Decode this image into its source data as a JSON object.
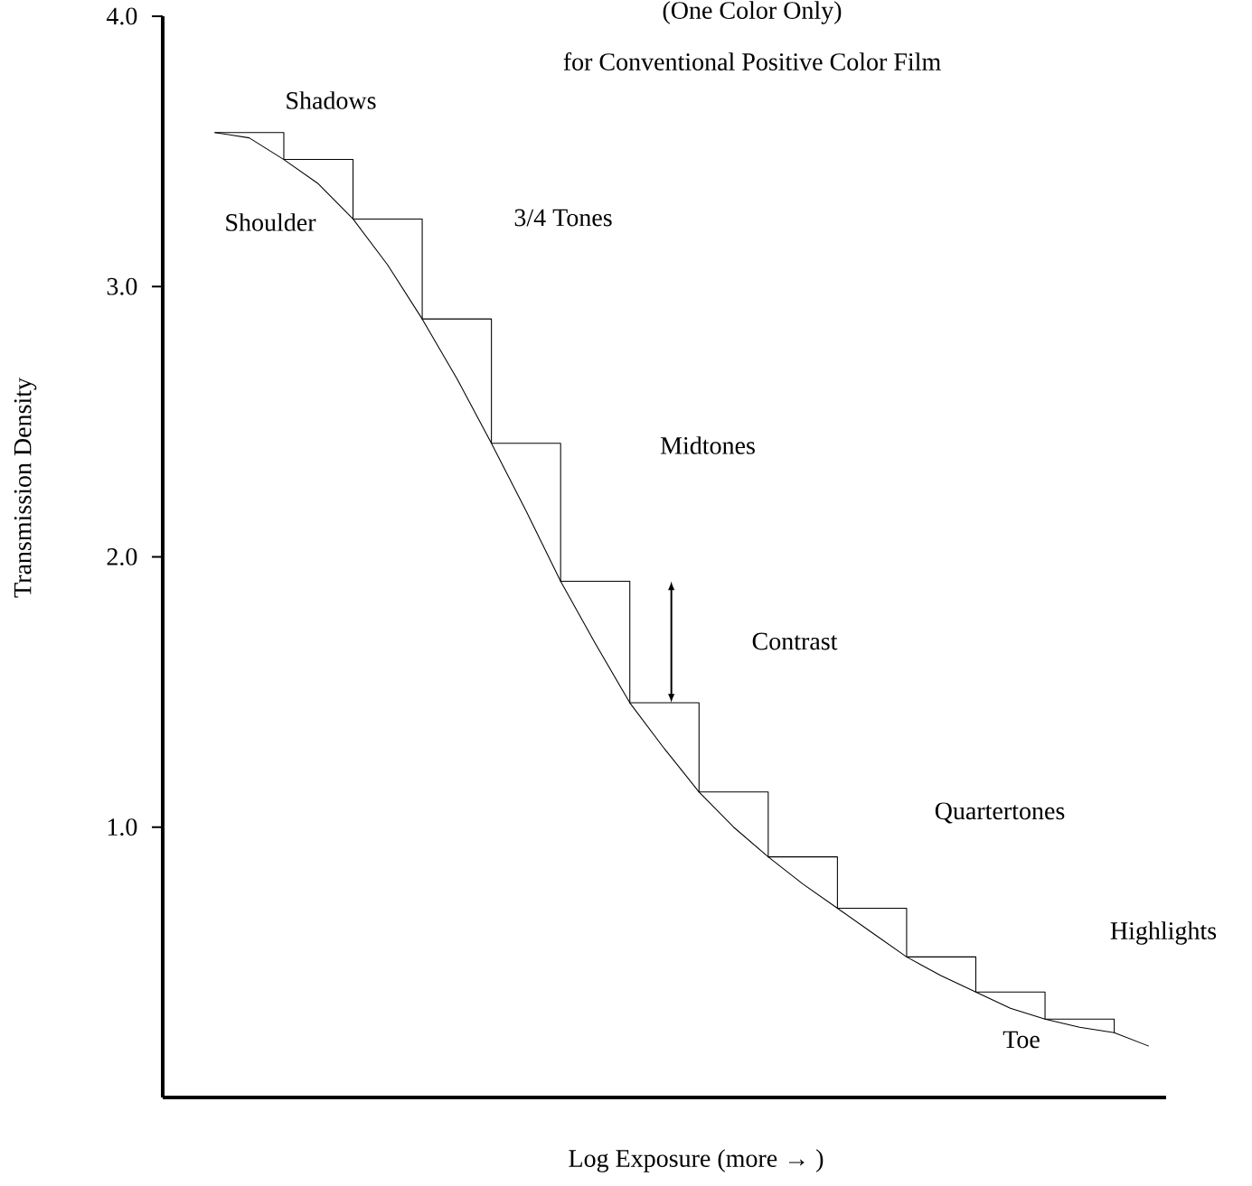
{
  "chart_data": {
    "type": "line",
    "title": "(One Color Only)",
    "subtitle": "for Conventional Positive Color Film",
    "xlabel": "Log Exposure (more → )",
    "ylabel": "Transmission Density",
    "categories": [
      null,
      null,
      null,
      null,
      null,
      null,
      null,
      null,
      null,
      null,
      null,
      null,
      null,
      null,
      null,
      null,
      null,
      null,
      null,
      null,
      null,
      null,
      null,
      null,
      null,
      null,
      null,
      null,
      null
    ],
    "series": [
      {
        "color": "#000000",
        "values": [
          null,
          3.57,
          3.55,
          3.47,
          3.38,
          3.25,
          3.08,
          2.88,
          2.66,
          2.42,
          2.17,
          1.91,
          1.68,
          1.46,
          1.29,
          1.13,
          1.0,
          0.89,
          0.79,
          0.7,
          0.61,
          0.52,
          0.45,
          0.39,
          0.33,
          0.29,
          0.26,
          0.24,
          0.19
        ]
      },
      {
        "type": "step",
        "color": "#000000",
        "values": [
          null,
          3.57,
          3.57,
          3.47,
          3.47,
          3.25,
          3.25,
          2.88,
          2.88,
          2.42,
          2.42,
          1.91,
          1.91,
          1.46,
          1.46,
          1.13,
          1.13,
          0.89,
          0.89,
          0.7,
          0.7,
          0.52,
          0.52,
          0.39,
          0.39,
          0.29,
          0.29,
          0.24,
          null
        ]
      }
    ],
    "ylim": [
      0,
      4
    ],
    "yticks": [
      {
        "value": 1,
        "label": "1.0"
      },
      {
        "value": 2,
        "label": "2.0"
      },
      {
        "value": 3,
        "label": "3.0"
      },
      {
        "value": 4,
        "label": "4.0"
      }
    ],
    "marker": "none",
    "annotations": [
      "Shadows",
      "Shoulder",
      "3/4 Tones",
      "Midtones",
      "Contrast",
      "Quartertones",
      "Highlights",
      "Toe"
    ]
  }
}
